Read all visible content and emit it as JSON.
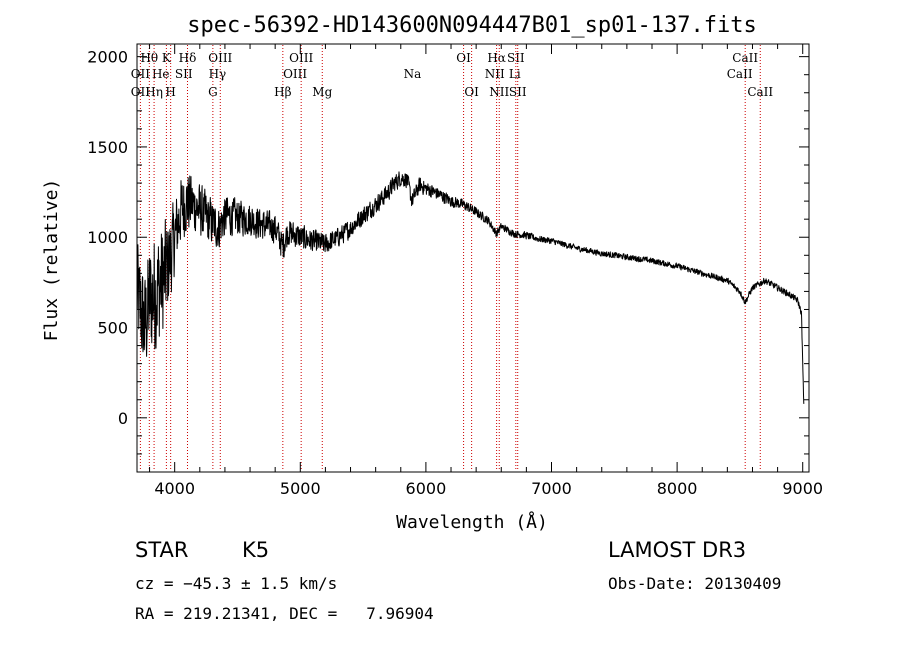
{
  "chart_data": {
    "type": "line",
    "title": "spec-56392-HD143600N094447B01_sp01-137.fits",
    "xlabel": "Wavelength (Å)",
    "ylabel": "Flux (relative)",
    "xlim": [
      3700,
      9050
    ],
    "ylim": [
      -300,
      2070
    ],
    "xticks": [
      4000,
      5000,
      6000,
      7000,
      8000,
      9000
    ],
    "yticks": [
      0,
      500,
      1000,
      1500,
      2000
    ],
    "line_color": "#000000",
    "marker_color": "#cc0000",
    "spectrum_anchors": {
      "x": [
        3700,
        3760,
        3800,
        3850,
        3900,
        3950,
        4000,
        4050,
        4100,
        4200,
        4300,
        4350,
        4400,
        4500,
        4600,
        4700,
        4800,
        4860,
        4900,
        5000,
        5100,
        5200,
        5300,
        5400,
        5500,
        5600,
        5700,
        5750,
        5800,
        5850,
        5890,
        5950,
        6000,
        6100,
        6200,
        6300,
        6400,
        6500,
        6563,
        6600,
        6700,
        6800,
        6900,
        7000,
        7200,
        7400,
        7600,
        7800,
        8000,
        8200,
        8400,
        8500,
        8542,
        8600,
        8700,
        8800,
        8900,
        8960,
        8990,
        9000,
        9010
      ],
      "y": [
        700,
        500,
        650,
        700,
        750,
        850,
        1000,
        1150,
        1200,
        1150,
        1080,
        1050,
        1120,
        1110,
        1100,
        1070,
        1050,
        950,
        1030,
        1000,
        980,
        960,
        1000,
        1050,
        1120,
        1180,
        1250,
        1300,
        1330,
        1320,
        1200,
        1290,
        1270,
        1240,
        1200,
        1180,
        1140,
        1090,
        1020,
        1060,
        1020,
        1010,
        990,
        980,
        940,
        910,
        890,
        870,
        840,
        800,
        760,
        700,
        640,
        720,
        760,
        720,
        680,
        650,
        580,
        300,
        30
      ],
      "noise": [
        500,
        500,
        550,
        600,
        550,
        450,
        350,
        320,
        300,
        250,
        230,
        200,
        200,
        170,
        160,
        150,
        140,
        140,
        130,
        120,
        110,
        100,
        95,
        90,
        90,
        85,
        85,
        85,
        80,
        80,
        80,
        75,
        70,
        60,
        55,
        50,
        45,
        40,
        40,
        35,
        35,
        35,
        30,
        30,
        28,
        28,
        28,
        28,
        28,
        28,
        28,
        30,
        30,
        30,
        30,
        30,
        30,
        30,
        30,
        30,
        30
      ]
    },
    "line_markers": [
      {
        "label": "Hθ",
        "x": 3798,
        "row": 0,
        "anchor": "center"
      },
      {
        "label": "K",
        "x": 3934,
        "row": 0,
        "anchor": "center"
      },
      {
        "label": "Hδ",
        "x": 4102,
        "row": 0,
        "anchor": "center"
      },
      {
        "label": "OIII",
        "x": 4363,
        "row": 0,
        "anchor": "center"
      },
      {
        "label": "OIII",
        "x": 5007,
        "row": 0,
        "anchor": "center"
      },
      {
        "label": "OI",
        "x": 6300,
        "row": 0,
        "anchor": "center"
      },
      {
        "label": "Hα",
        "x": 6563,
        "row": 0,
        "anchor": "center"
      },
      {
        "label": "SII",
        "x": 6716,
        "row": 0,
        "anchor": "center"
      },
      {
        "label": "CaII",
        "x": 8542,
        "row": 0,
        "anchor": "center"
      },
      {
        "label": "OII",
        "x": 3727,
        "row": 1,
        "anchor": "center"
      },
      {
        "label": "He",
        "x": 3889,
        "row": 1,
        "anchor": "center"
      },
      {
        "label": "SII",
        "x": 4072,
        "row": 1,
        "anchor": "center"
      },
      {
        "label": "Hγ",
        "x": 4340,
        "row": 1,
        "anchor": "center"
      },
      {
        "label": "OIII",
        "x": 4959,
        "row": 1,
        "anchor": "center"
      },
      {
        "label": "Na",
        "x": 5893,
        "row": 1,
        "anchor": "center"
      },
      {
        "label": "NII",
        "x": 6548,
        "row": 1,
        "anchor": "center"
      },
      {
        "label": "Li",
        "x": 6708,
        "row": 1,
        "anchor": "center"
      },
      {
        "label": "CaII",
        "x": 8498,
        "row": 1,
        "anchor": "center"
      },
      {
        "label": "OII",
        "x": 3727,
        "row": 2,
        "anchor": "center"
      },
      {
        "label": "Hη",
        "x": 3836,
        "row": 2,
        "anchor": "center"
      },
      {
        "label": "H",
        "x": 3968,
        "row": 2,
        "anchor": "center"
      },
      {
        "label": "G",
        "x": 4304,
        "row": 2,
        "anchor": "center"
      },
      {
        "label": "Hβ",
        "x": 4861,
        "row": 2,
        "anchor": "center"
      },
      {
        "label": "Mg",
        "x": 5175,
        "row": 2,
        "anchor": "center"
      },
      {
        "label": "OI",
        "x": 6364,
        "row": 2,
        "anchor": "center"
      },
      {
        "label": "NII",
        "x": 6584,
        "row": 2,
        "anchor": "center"
      },
      {
        "label": "SII",
        "x": 6731,
        "row": 2,
        "anchor": "center"
      },
      {
        "label": "CaII",
        "x": 8662,
        "row": 2,
        "anchor": "center"
      }
    ]
  },
  "info": {
    "object_class": "STAR",
    "subclass": "K5",
    "survey": "LAMOST DR3",
    "redshift": "cz = −45.3 ± 1.5 km/s",
    "obs_date": "Obs-Date: 20130409",
    "coords": "RA = 219.21341, DEC =   7.96904"
  }
}
